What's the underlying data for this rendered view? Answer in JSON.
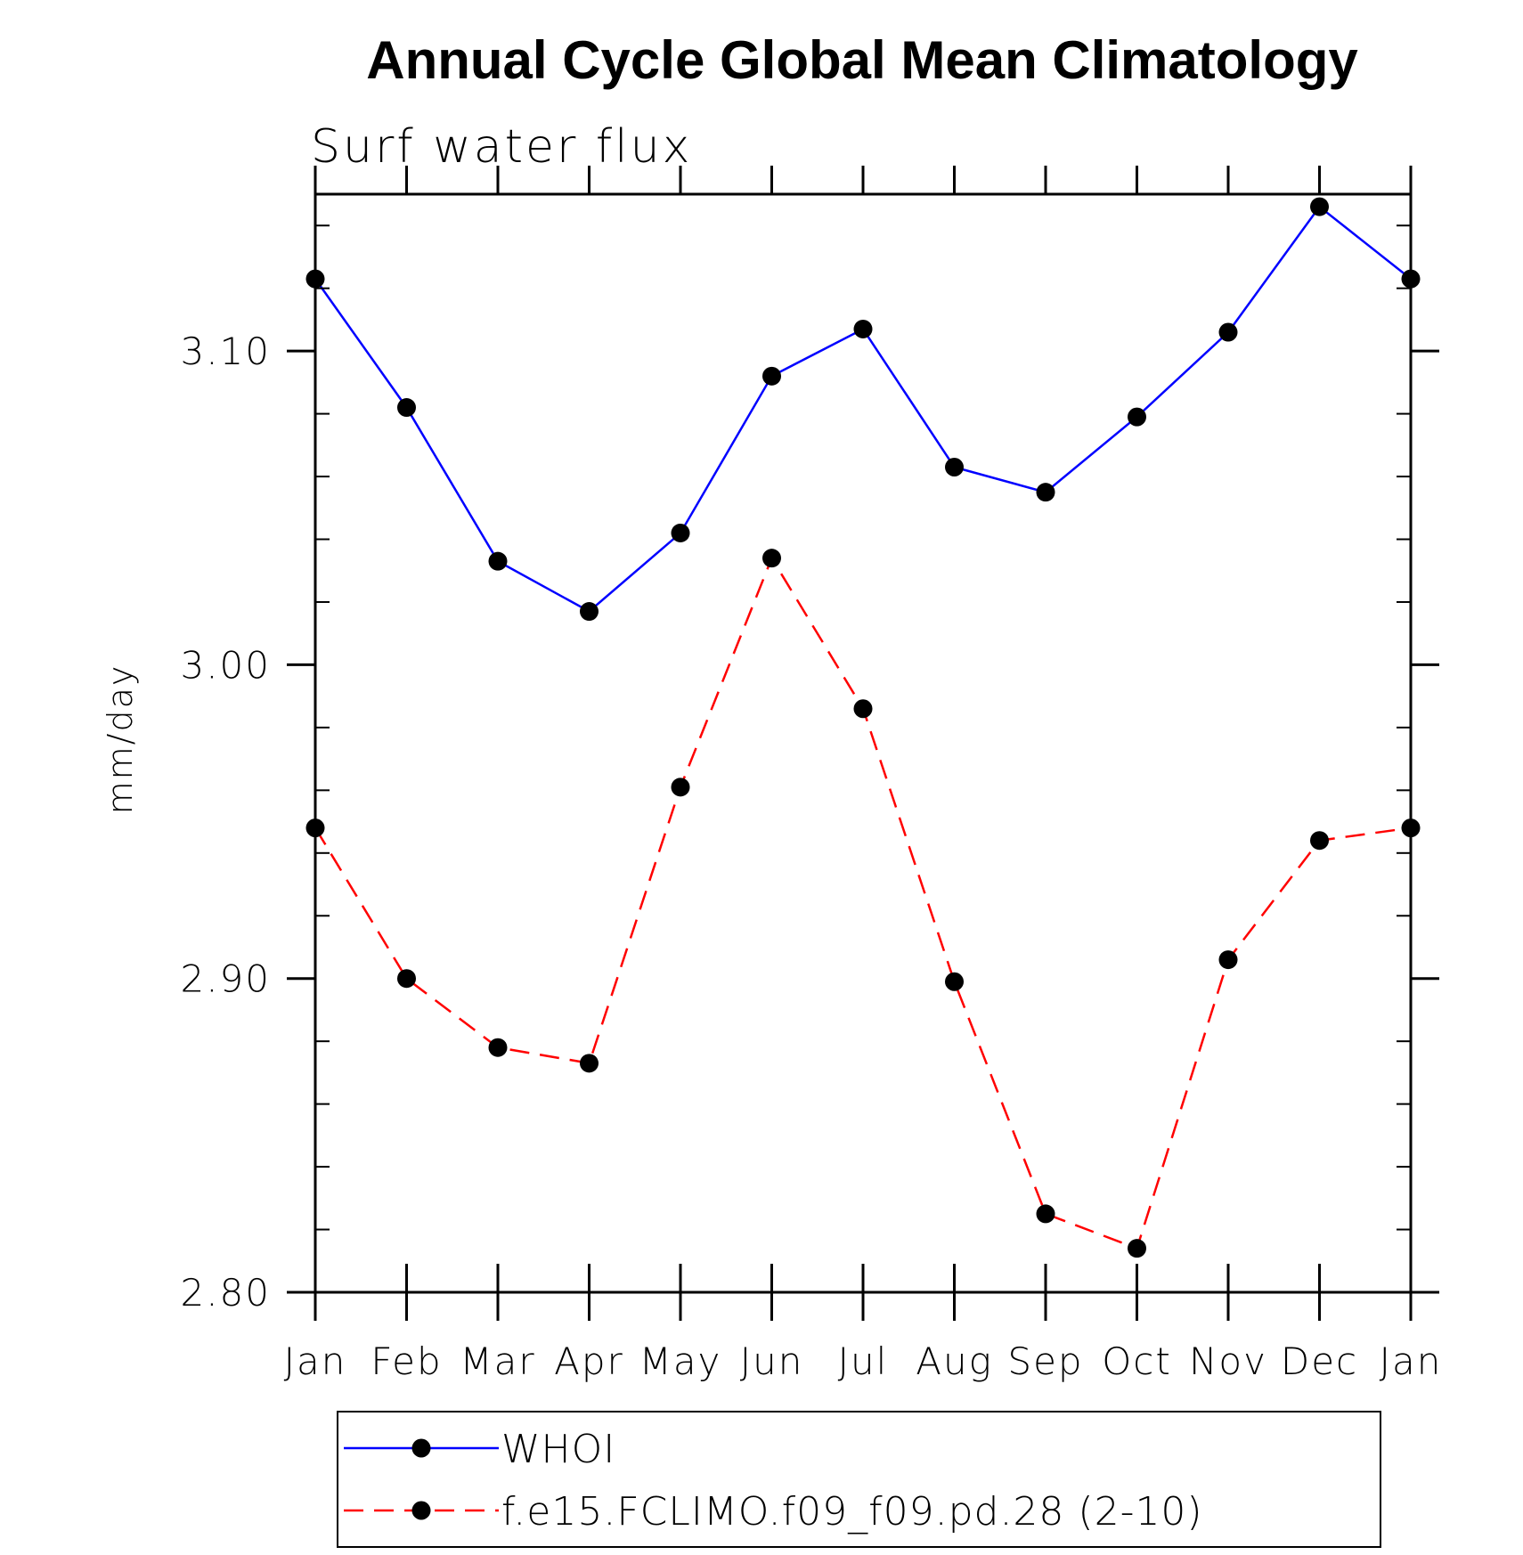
{
  "chart_data": {
    "type": "line",
    "title": "Annual Cycle Global Mean Climatology",
    "subtitle": "Surf water flux",
    "ylabel": "mm/day",
    "xlabel": "",
    "categories": [
      "Jan",
      "Feb",
      "Mar",
      "Apr",
      "May",
      "Jun",
      "Jul",
      "Aug",
      "Sep",
      "Oct",
      "Nov",
      "Dec",
      "Jan"
    ],
    "ylim": [
      2.8,
      3.15
    ],
    "yticks": [
      "3.10",
      "3.00",
      "2.90",
      "2.80"
    ],
    "grid": false,
    "legend_position": "bottom",
    "series": [
      {
        "name": "WHOI",
        "color": "#0000ff",
        "line_style": "solid",
        "marker": "filled-circle",
        "values": [
          3.123,
          3.082,
          3.033,
          3.017,
          3.042,
          3.092,
          3.107,
          3.063,
          3.055,
          3.079,
          3.106,
          3.146,
          3.123
        ]
      },
      {
        "name": "f.e15.FCLIMO.f09_f09.pd.28 (2-10)",
        "color": "#ff0000",
        "line_style": "dashed",
        "marker": "filled-circle",
        "values": [
          2.948,
          2.9,
          2.878,
          2.873,
          2.961,
          3.034,
          2.986,
          2.899,
          2.825,
          2.814,
          2.906,
          2.944,
          2.948
        ]
      }
    ]
  }
}
